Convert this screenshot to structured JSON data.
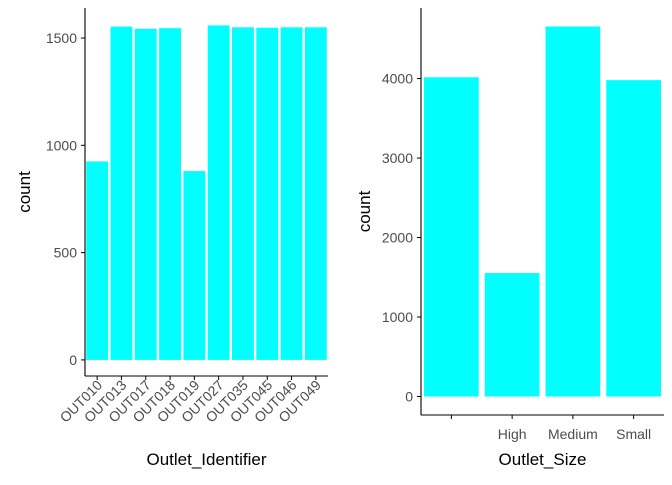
{
  "colors": {
    "bar": "#00FFFF",
    "axis": "#000000",
    "tick_text": "#4D4D4D",
    "background": "#FFFFFF"
  },
  "chart_data": [
    {
      "type": "bar",
      "xlabel": "Outlet_Identifier",
      "ylabel": "count",
      "categories": [
        "OUT010",
        "OUT013",
        "OUT017",
        "OUT018",
        "OUT019",
        "OUT027",
        "OUT035",
        "OUT045",
        "OUT046",
        "OUT049"
      ],
      "values": [
        925,
        1553,
        1543,
        1546,
        880,
        1559,
        1550,
        1548,
        1550,
        1550
      ],
      "ylim": [
        -75,
        1640
      ],
      "yticks": [
        0,
        500,
        1000,
        1500
      ],
      "x_tick_rotation": 45,
      "grid": false
    },
    {
      "type": "bar",
      "xlabel": "Outlet_Size",
      "ylabel": "count",
      "categories": [
        "",
        "High",
        "Medium",
        "Small"
      ],
      "values": [
        4016,
        1553,
        4655,
        3980
      ],
      "ylim": [
        -233,
        4888
      ],
      "yticks": [
        0,
        1000,
        2000,
        3000,
        4000
      ],
      "x_tick_rotation": 0,
      "grid": false
    }
  ]
}
